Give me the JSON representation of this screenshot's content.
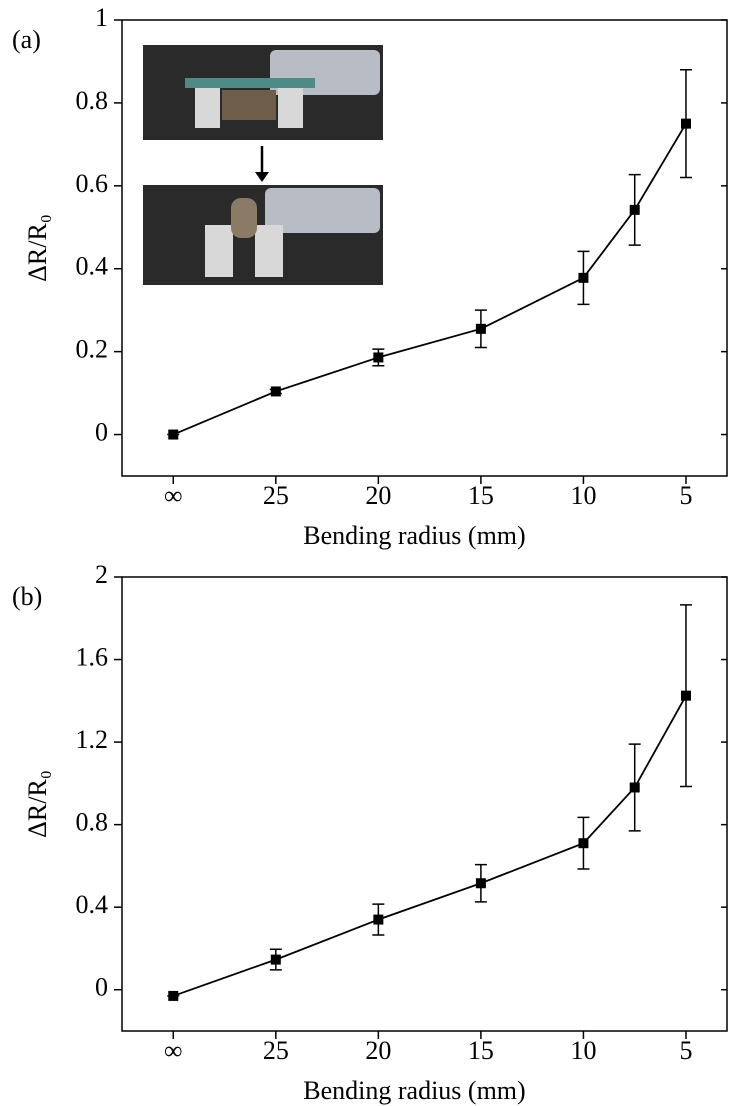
{
  "chart_data": [
    {
      "type": "line",
      "panel_label": "(a)",
      "xlabel": "Bending radius (mm)",
      "ylabel": "ΔR/R₀",
      "color": "#000000",
      "x": [
        30,
        25,
        20,
        15,
        10,
        7.5,
        5
      ],
      "values": [
        0,
        0.104,
        0.186,
        0.255,
        0.378,
        0.542,
        0.75
      ],
      "errors": [
        0,
        0.005,
        0.02,
        0.045,
        0.064,
        0.085,
        0.13
      ],
      "xlim": [
        32.5,
        3
      ],
      "xticks": [
        {
          "value": 30,
          "label": "∞"
        },
        25,
        20,
        15,
        10,
        5
      ],
      "ylim": [
        -0.1,
        1
      ],
      "yticks": [
        0,
        0.2,
        0.4,
        0.6,
        0.8,
        1
      ]
    },
    {
      "type": "line",
      "panel_label": "(b)",
      "xlabel": "Bending radius (mm)",
      "ylabel": "ΔR/R₀",
      "color": "#000000",
      "x": [
        30,
        25,
        20,
        15,
        10,
        7.5,
        5
      ],
      "values": [
        -0.03,
        0.146,
        0.34,
        0.516,
        0.71,
        0.98,
        1.425
      ],
      "errors": [
        0,
        0.05,
        0.075,
        0.09,
        0.125,
        0.21,
        0.44
      ],
      "xlim": [
        32.5,
        3
      ],
      "xticks": [
        {
          "value": 30,
          "label": "∞"
        },
        25,
        20,
        15,
        10,
        5
      ],
      "ylim": [
        -0.2,
        2
      ],
      "yticks": [
        0,
        0.4,
        0.8,
        1.2,
        1.6,
        2
      ]
    }
  ]
}
